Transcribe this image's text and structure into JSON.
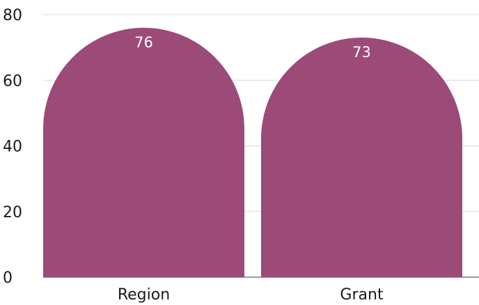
{
  "chart_data": {
    "type": "bar",
    "categories": [
      "Region",
      "Grant"
    ],
    "values": [
      76,
      73
    ],
    "data_labels": [
      "76",
      "73"
    ],
    "y_ticks": [
      "0",
      "20",
      "40",
      "60",
      "80"
    ],
    "ylim": [
      0,
      80
    ],
    "grid": true,
    "bar_shape": "rounded-top",
    "colors": {
      "bar": "#9c4a78",
      "grid": "#d9d9d9",
      "axis": "#333333",
      "text": "#1a1a1a",
      "data_label": "#ffffff"
    }
  }
}
